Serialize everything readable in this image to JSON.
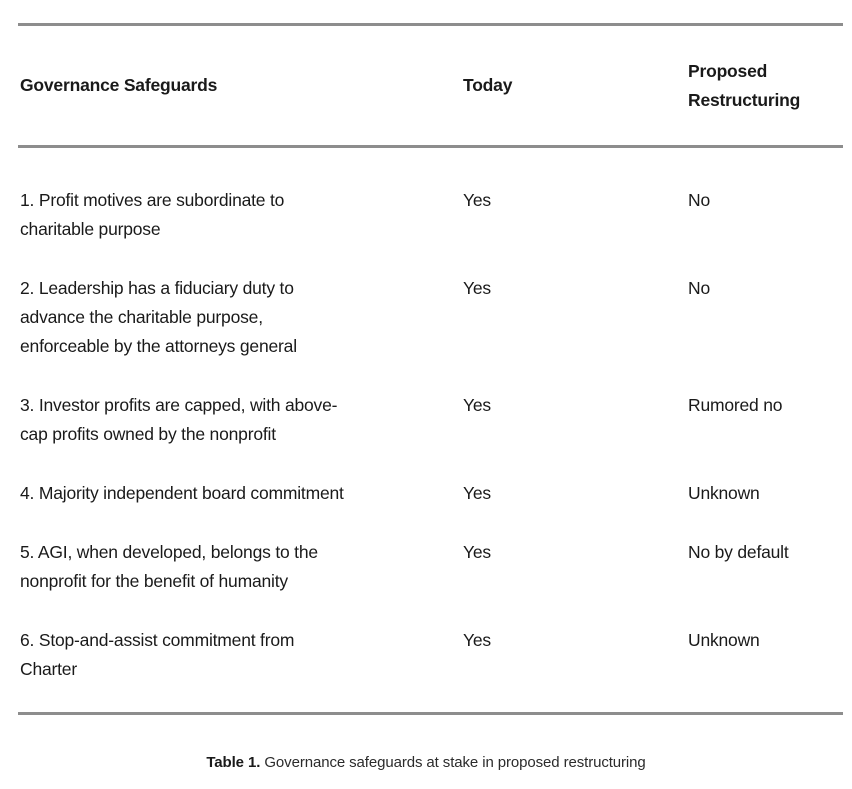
{
  "table": {
    "columns": [
      {
        "label": "Governance Safeguards"
      },
      {
        "label": "Today"
      },
      {
        "label": "Proposed\nRestructuring"
      }
    ],
    "rows": [
      {
        "safeguard": "1. Profit motives are subordinate to\ncharitable purpose",
        "today": "Yes",
        "proposed": "No"
      },
      {
        "safeguard": "2. Leadership has a fiduciary duty to\nadvance the charitable purpose,\nenforceable by the attorneys general",
        "today": "Yes",
        "proposed": "No"
      },
      {
        "safeguard": "3. Investor profits are capped, with above-\ncap profits owned by the nonprofit",
        "today": "Yes",
        "proposed": "Rumored no"
      },
      {
        "safeguard": "4. Majority independent board commitment",
        "today": "Yes",
        "proposed": "Unknown"
      },
      {
        "safeguard": "5. AGI, when developed, belongs to the\nnonprofit for the benefit of humanity",
        "today": "Yes",
        "proposed": "No by default"
      },
      {
        "safeguard": "6. Stop-and-assist commitment from\nCharter",
        "today": "Yes",
        "proposed": "Unknown"
      }
    ]
  },
  "caption": {
    "label": "Table 1.",
    "text": " Governance safeguards at stake in proposed restructuring"
  },
  "colors": {
    "text": "#1a1a1a",
    "rule": "#8d8d8d",
    "background": "#ffffff"
  }
}
